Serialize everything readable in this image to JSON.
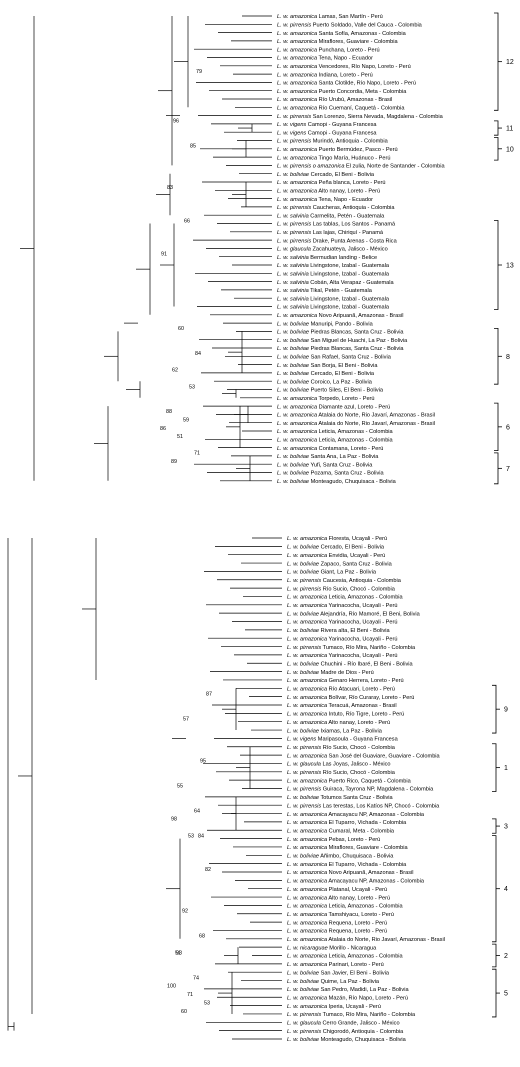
{
  "panel_top": {
    "leaves": [
      [
        "L. w. amazonica",
        "Lamas, San Martín - Perú"
      ],
      [
        "L. w. pirrensis",
        "Puerto Soldado, Valle del Cauca - Colombia"
      ],
      [
        "L. w. amazonica",
        "Santa Sofía, Amazonas - Colombia"
      ],
      [
        "L. w. amazonica",
        "Miraflores, Guaviare - Colombia"
      ],
      [
        "L. w. amazonica",
        "Punchana, Loreto - Perú"
      ],
      [
        "L. w. amazonica",
        "Tena, Napo - Ecuador"
      ],
      [
        "L. w. amazonica",
        "Vencedores, Río Napo, Loreto - Perú"
      ],
      [
        "L. w. amazonica",
        "Indiana, Loreto - Perú"
      ],
      [
        "L. w. amazonica",
        "Santa Clotilde, Río Napo, Loreto - Perú"
      ],
      [
        "L. w. amazonica",
        "Puerto Concordia, Meta - Colombia"
      ],
      [
        "L. w. amazonica",
        "Río Urubú, Amazonas - Brasil"
      ],
      [
        "L. w. amazonica",
        "Río Cuemaní, Caquetá - Colombia"
      ],
      [
        "L. w. pirrensis",
        "San Lorenzo, Sierra Nevada, Magdalena - Colombia"
      ],
      [
        "L. w. vigens",
        "Camopi - Guyana Francesa"
      ],
      [
        "L. w. vigens",
        "Camopi - Guyana Francesa"
      ],
      [
        "L. w. pirrensis",
        "Murindó, Antioquia - Colombia"
      ],
      [
        "L. w. amazonica",
        "Puerto Bermúdez, Pasco - Perú"
      ],
      [
        "L. w. amazonica",
        "Tingo María, Huánuco - Perú"
      ],
      [
        "L. w. pirrensis o amazonica",
        "El zulia, Norte de Santander - Colombia"
      ],
      [
        "L. w. boliviae",
        "Cercado, El Beni - Bolivia"
      ],
      [
        "L. w. amazonica",
        "Peña blanca, Loreto - Perú"
      ],
      [
        "L. w. amazonica",
        "Alto nanay, Loreto - Perú"
      ],
      [
        "L. w. amazonica",
        "Tena, Napo - Ecuador"
      ],
      [
        "L. w. pirrensis",
        "Caucheras, Antioquia - Colombia"
      ],
      [
        "L. w. salvinia",
        "Carmelita, Petén - Guatemala"
      ],
      [
        "L. w. pirrensis",
        "Las tablas, Los Santos - Panamá"
      ],
      [
        "L. w. pirrensis",
        "Las lajas, Chiriquí - Panamá"
      ],
      [
        "L. w. pirrensis",
        "Drake, Punta Arenas - Costa Rica"
      ],
      [
        "L. w. glaucula",
        "Zacahuateya, Jalisco - México"
      ],
      [
        "L. w. salvinia",
        "Bermudian landing - Belice"
      ],
      [
        "L. w. salvinia",
        "Livingstone, Izabal - Guatemala"
      ],
      [
        "L. w. salvinia",
        "Livingstone, Izabal - Guatemala"
      ],
      [
        "L. w. salvinia",
        "Cobán, Alta Verapaz - Guatemala"
      ],
      [
        "L. w. salvinia",
        "Tikal, Petén - Guatemala"
      ],
      [
        "L. w. salvinia",
        "Livingstone, Izabal - Guatemala"
      ],
      [
        "L. w. salvinia",
        "Livingstone, Izabal - Guatemala"
      ],
      [
        "L. w. amazonica",
        "Novo Aripuanã, Amazonas - Brasil"
      ],
      [
        "L. w. boliviae",
        "Manuripi, Pando - Bolivia"
      ],
      [
        "L. w. boliviae",
        "Piedras Blancas, Santa Cruz - Bolivia"
      ],
      [
        "L. w. boliviae",
        "San Miguel de Huachi, La Paz - Bolivia"
      ],
      [
        "L. w. boliviae",
        "Piedras Blancas, Santa Cruz - Bolivia"
      ],
      [
        "L. w. boliviae",
        "San Rafael, Santa Cruz - Bolivia"
      ],
      [
        "L. w. boliviae",
        "San Borja, El Beni - Bolivia"
      ],
      [
        "L. w. boliviae",
        "Cercado, El Beni - Bolivia"
      ],
      [
        "L. w. boliviae",
        "Coroico, La Paz - Bolivia"
      ],
      [
        "L. w. boliviae",
        "Puerto Siles, El Beni - Bolivia"
      ],
      [
        "L. w. amazonica",
        "Torpedo, Loreto - Perú"
      ],
      [
        "L. w. amazonica",
        "Diamante azul, Loreto - Perú"
      ],
      [
        "L. w. amazonica",
        "Atalaia do Norte, Rio Javarí, Amazonas - Brasil"
      ],
      [
        "L. w. amazonica",
        "Atalaia do Norte, Rio Javarí, Amazonas - Brasil"
      ],
      [
        "L. w. amazonica",
        "Leticia, Amazonas - Colombia"
      ],
      [
        "L. w. amazonica",
        "Leticia, Amazonas - Colombia"
      ],
      [
        "L. w. amazonica",
        "Contamana, Loreto - Perú"
      ],
      [
        "L. w. boliviae",
        "Santa Ana, La Paz - Bolivia"
      ],
      [
        "L. w. boliviae",
        "Yufi, Santa Cruz - Bolivia"
      ],
      [
        "L. w. boliviae",
        "Pozama, Santa Cruz - Bolivia"
      ],
      [
        "L. w. boliviae",
        "Monteagudo, Chuquisaca - Bolivia"
      ]
    ],
    "support": [
      {
        "value": "79",
        "row": 7
      },
      {
        "value": "96",
        "row": 13
      },
      {
        "value": "85",
        "row": 16
      },
      {
        "value": "83",
        "row": 21
      },
      {
        "value": "66",
        "row": 25
      },
      {
        "value": "91",
        "row": 29
      },
      {
        "value": "60",
        "row": 38
      },
      {
        "value": "84",
        "row": 41
      },
      {
        "value": "62",
        "row": 43
      },
      {
        "value": "53",
        "row": 45
      },
      {
        "value": "88",
        "row": 48
      },
      {
        "value": "59",
        "row": 49
      },
      {
        "value": "86",
        "row": 50
      },
      {
        "value": "51",
        "row": 51
      },
      {
        "value": "71",
        "row": 53
      },
      {
        "value": "89",
        "row": 54
      }
    ],
    "clades": [
      {
        "label": "12",
        "from": 0,
        "to": 11
      },
      {
        "label": "11",
        "from": 13,
        "to": 14
      },
      {
        "label": "10",
        "from": 15,
        "to": 17
      },
      {
        "label": "13",
        "from": 25,
        "to": 35
      },
      {
        "label": "8",
        "from": 38,
        "to": 44
      },
      {
        "label": "6",
        "from": 47,
        "to": 52
      },
      {
        "label": "7",
        "from": 53,
        "to": 56
      }
    ]
  },
  "panel_bottom": {
    "leaves": [
      [
        "L. w. amazonica",
        "Floresta, Ucayali - Perú"
      ],
      [
        "L. w. boliviae",
        "Cercado, El Beni - Bolivia"
      ],
      [
        "L. w. amazonica",
        "Envidia, Ucayali - Perú"
      ],
      [
        "L. w. boliviae",
        "Zapaco, Santa Cruz - Bolivia"
      ],
      [
        "L. w. boliviae",
        "Giant, La Paz - Bolivia"
      ],
      [
        "L. w. pirrensis",
        "Caucesia, Antioquia - Colombia"
      ],
      [
        "L. w. pirrensis",
        "Río Sucio, Chocó - Colombia"
      ],
      [
        "L. w. amazonica",
        "Leticia, Amazonas - Colombia"
      ],
      [
        "L. w. amazonica",
        "Yarinacocha, Ucayali - Perú"
      ],
      [
        "L. w. boliviae",
        "Alejandría, Río Mamoré, El Beni, Bolivia"
      ],
      [
        "L. w. amazonica",
        "Yarinacocha, Ucayali - Perú"
      ],
      [
        "L. w. boliviae",
        "Rivera alta, El Beni - Bolivia"
      ],
      [
        "L. w. amazonica",
        "Yarinacocha, Ucayali - Perú"
      ],
      [
        "L. w. pirrensis",
        "Tumaco, Río Mira, Nariño - Colombia"
      ],
      [
        "L. w. amazonica",
        "Yarinacocha, Ucayali - Perú"
      ],
      [
        "L. w. boliviae",
        "Chuchini - Río Ibaré, El Beni - Bolivia"
      ],
      [
        "L. w. boliviae",
        "Madre de Dios - Perú"
      ],
      [
        "L. w. amazonica",
        "Genaro Herrera, Loreto - Perú"
      ],
      [
        "L. w. amazonica",
        "Río Atacuari, Loreto - Perú"
      ],
      [
        "L. w. amazonica",
        "Bolívar, Río Curaray, Loreto - Perú"
      ],
      [
        "L. w. amazonica",
        "Teracuá, Amazonas - Brasil"
      ],
      [
        "L. w. amazonica",
        "Intuto, Río Tigre, Loreto - Perú"
      ],
      [
        "L. w. amazonica",
        "Alto nanay, Loreto - Perú"
      ],
      [
        "L. w. boliviae",
        "Ixiamas, La Paz - Bolivia"
      ],
      [
        "L. w. vigens",
        "Maripasoula - Guyana Francesa"
      ],
      [
        "L. w. pirrensis",
        "Río Sucio, Chocó - Colombia"
      ],
      [
        "L. w. amazonica",
        "San José del Guaviare, Guaviare - Colombia"
      ],
      [
        "L. w. glaucula",
        "Las Joyas, Jalisco - México"
      ],
      [
        "L. w. pirrensis",
        "Río Sucio, Chocó - Colombia"
      ],
      [
        "L. w. amazonica",
        "Puerto Rico, Caquetá - Colombia"
      ],
      [
        "L. w. pirrensis",
        "Guiraca, Tayrona NP, Magdalena - Colombia"
      ],
      [
        "L. w. boliviae",
        "Totumos Santa Cruz - Bolivia"
      ],
      [
        "L. w. pirrensis",
        "Las terestas, Los Katíos NP, Chocó - Colombia"
      ],
      [
        "L. w. amazonica",
        "Amacayacu NP, Amazonas - Colombia"
      ],
      [
        "L. w. amazonica",
        "El Tuparro, Vichada - Colombia"
      ],
      [
        "L. w. amazonica",
        "Cumaral, Meta - Colombia"
      ],
      [
        "L. w. amazonica",
        "Pebas, Loreto - Perú"
      ],
      [
        "L. w. amazonica",
        "Miraflores, Guaviare - Colombia"
      ],
      [
        "L. w. boliviae",
        "Añimbo, Chuquisaca - Bolivia"
      ],
      [
        "L. w. amazonica",
        "El Tuparro, Vichada - Colombia"
      ],
      [
        "L. w. amazonica",
        "Novo Aripuanã, Amazonas - Brasil"
      ],
      [
        "L. w. amazonica",
        "Amacayacu NP, Amazonas - Colombia"
      ],
      [
        "L. w. amazonica",
        "Platanal, Ucayali - Perú"
      ],
      [
        "L. w. amazonica",
        "Alto nanay, Loreto - Perú"
      ],
      [
        "L. w. amazonica",
        "Leticia, Amazonas - Colombia"
      ],
      [
        "L. w. amazonica",
        "Tamshiyacu, Loreto - Perú"
      ],
      [
        "L. w. amazonica",
        "Requena, Loreto - Perú"
      ],
      [
        "L. w. amazonica",
        "Requena, Loreto - Perú"
      ],
      [
        "L. w. amazonica",
        "Atalaia do Norte, Rio Javarí, Amazonas - Brasil"
      ],
      [
        "L. w. nicaraguae",
        "Morillo - Nicaragua"
      ],
      [
        "L. w. amazonica",
        "Leticia, Amazonas - Colombia"
      ],
      [
        "L. w. amazonica",
        "Parinari, Loreto - Perú"
      ],
      [
        "L. w. boliviae",
        "San Javier, El Beni - Bolivia"
      ],
      [
        "L. w. boliviae",
        "Quime, La Paz - Bolivia"
      ],
      [
        "L. w. boliviae",
        "San Pedro, Madidi, La Paz - Bolivia"
      ],
      [
        "L. w. amazonica",
        "Mazán, Río Napo, Loreto - Perú"
      ],
      [
        "L. w. amazonica",
        "Iperia, Ucayali - Perú"
      ],
      [
        "L. w. pirrensis",
        "Tumaco, Río Mira, Nariño - Colombia"
      ],
      [
        "L. w. glaucula",
        "Cerro Grande, Jalisco - México"
      ],
      [
        "L. w. pirrensis",
        "Chigorodó, Antioquia - Colombia"
      ],
      [
        "L. w. boliviae",
        "Monteagudo, Chuquisaca - Bolivia"
      ]
    ],
    "support": [
      {
        "value": "87",
        "row": 19
      },
      {
        "value": "57",
        "row": 22
      },
      {
        "value": "95",
        "row": 27
      },
      {
        "value": "55",
        "row": 30
      },
      {
        "value": "64",
        "row": 33
      },
      {
        "value": "98",
        "row": 34
      },
      {
        "value": "53",
        "row": 36
      },
      {
        "value": "82",
        "row": 40
      },
      {
        "value": "92",
        "row": 45
      },
      {
        "value": "68",
        "row": 48
      },
      {
        "value": "93",
        "row": 50
      },
      {
        "value": "74",
        "row": 53
      },
      {
        "value": "100",
        "row": 54
      },
      {
        "value": "71",
        "row": 55
      },
      {
        "value": "53",
        "row": 56
      },
      {
        "value": "60",
        "row": 57
      },
      {
        "value": "84",
        "row": 36
      },
      {
        "value": "51",
        "row": 50
      }
    ],
    "clades": [
      {
        "label": "9",
        "from": 18,
        "to": 23
      },
      {
        "label": "1",
        "from": 25,
        "to": 30
      },
      {
        "label": "3",
        "from": 34,
        "to": 35
      },
      {
        "label": "4",
        "from": 36,
        "to": 48
      },
      {
        "label": "2",
        "from": 49,
        "to": 51
      },
      {
        "label": "5",
        "from": 52,
        "to": 57
      }
    ]
  }
}
